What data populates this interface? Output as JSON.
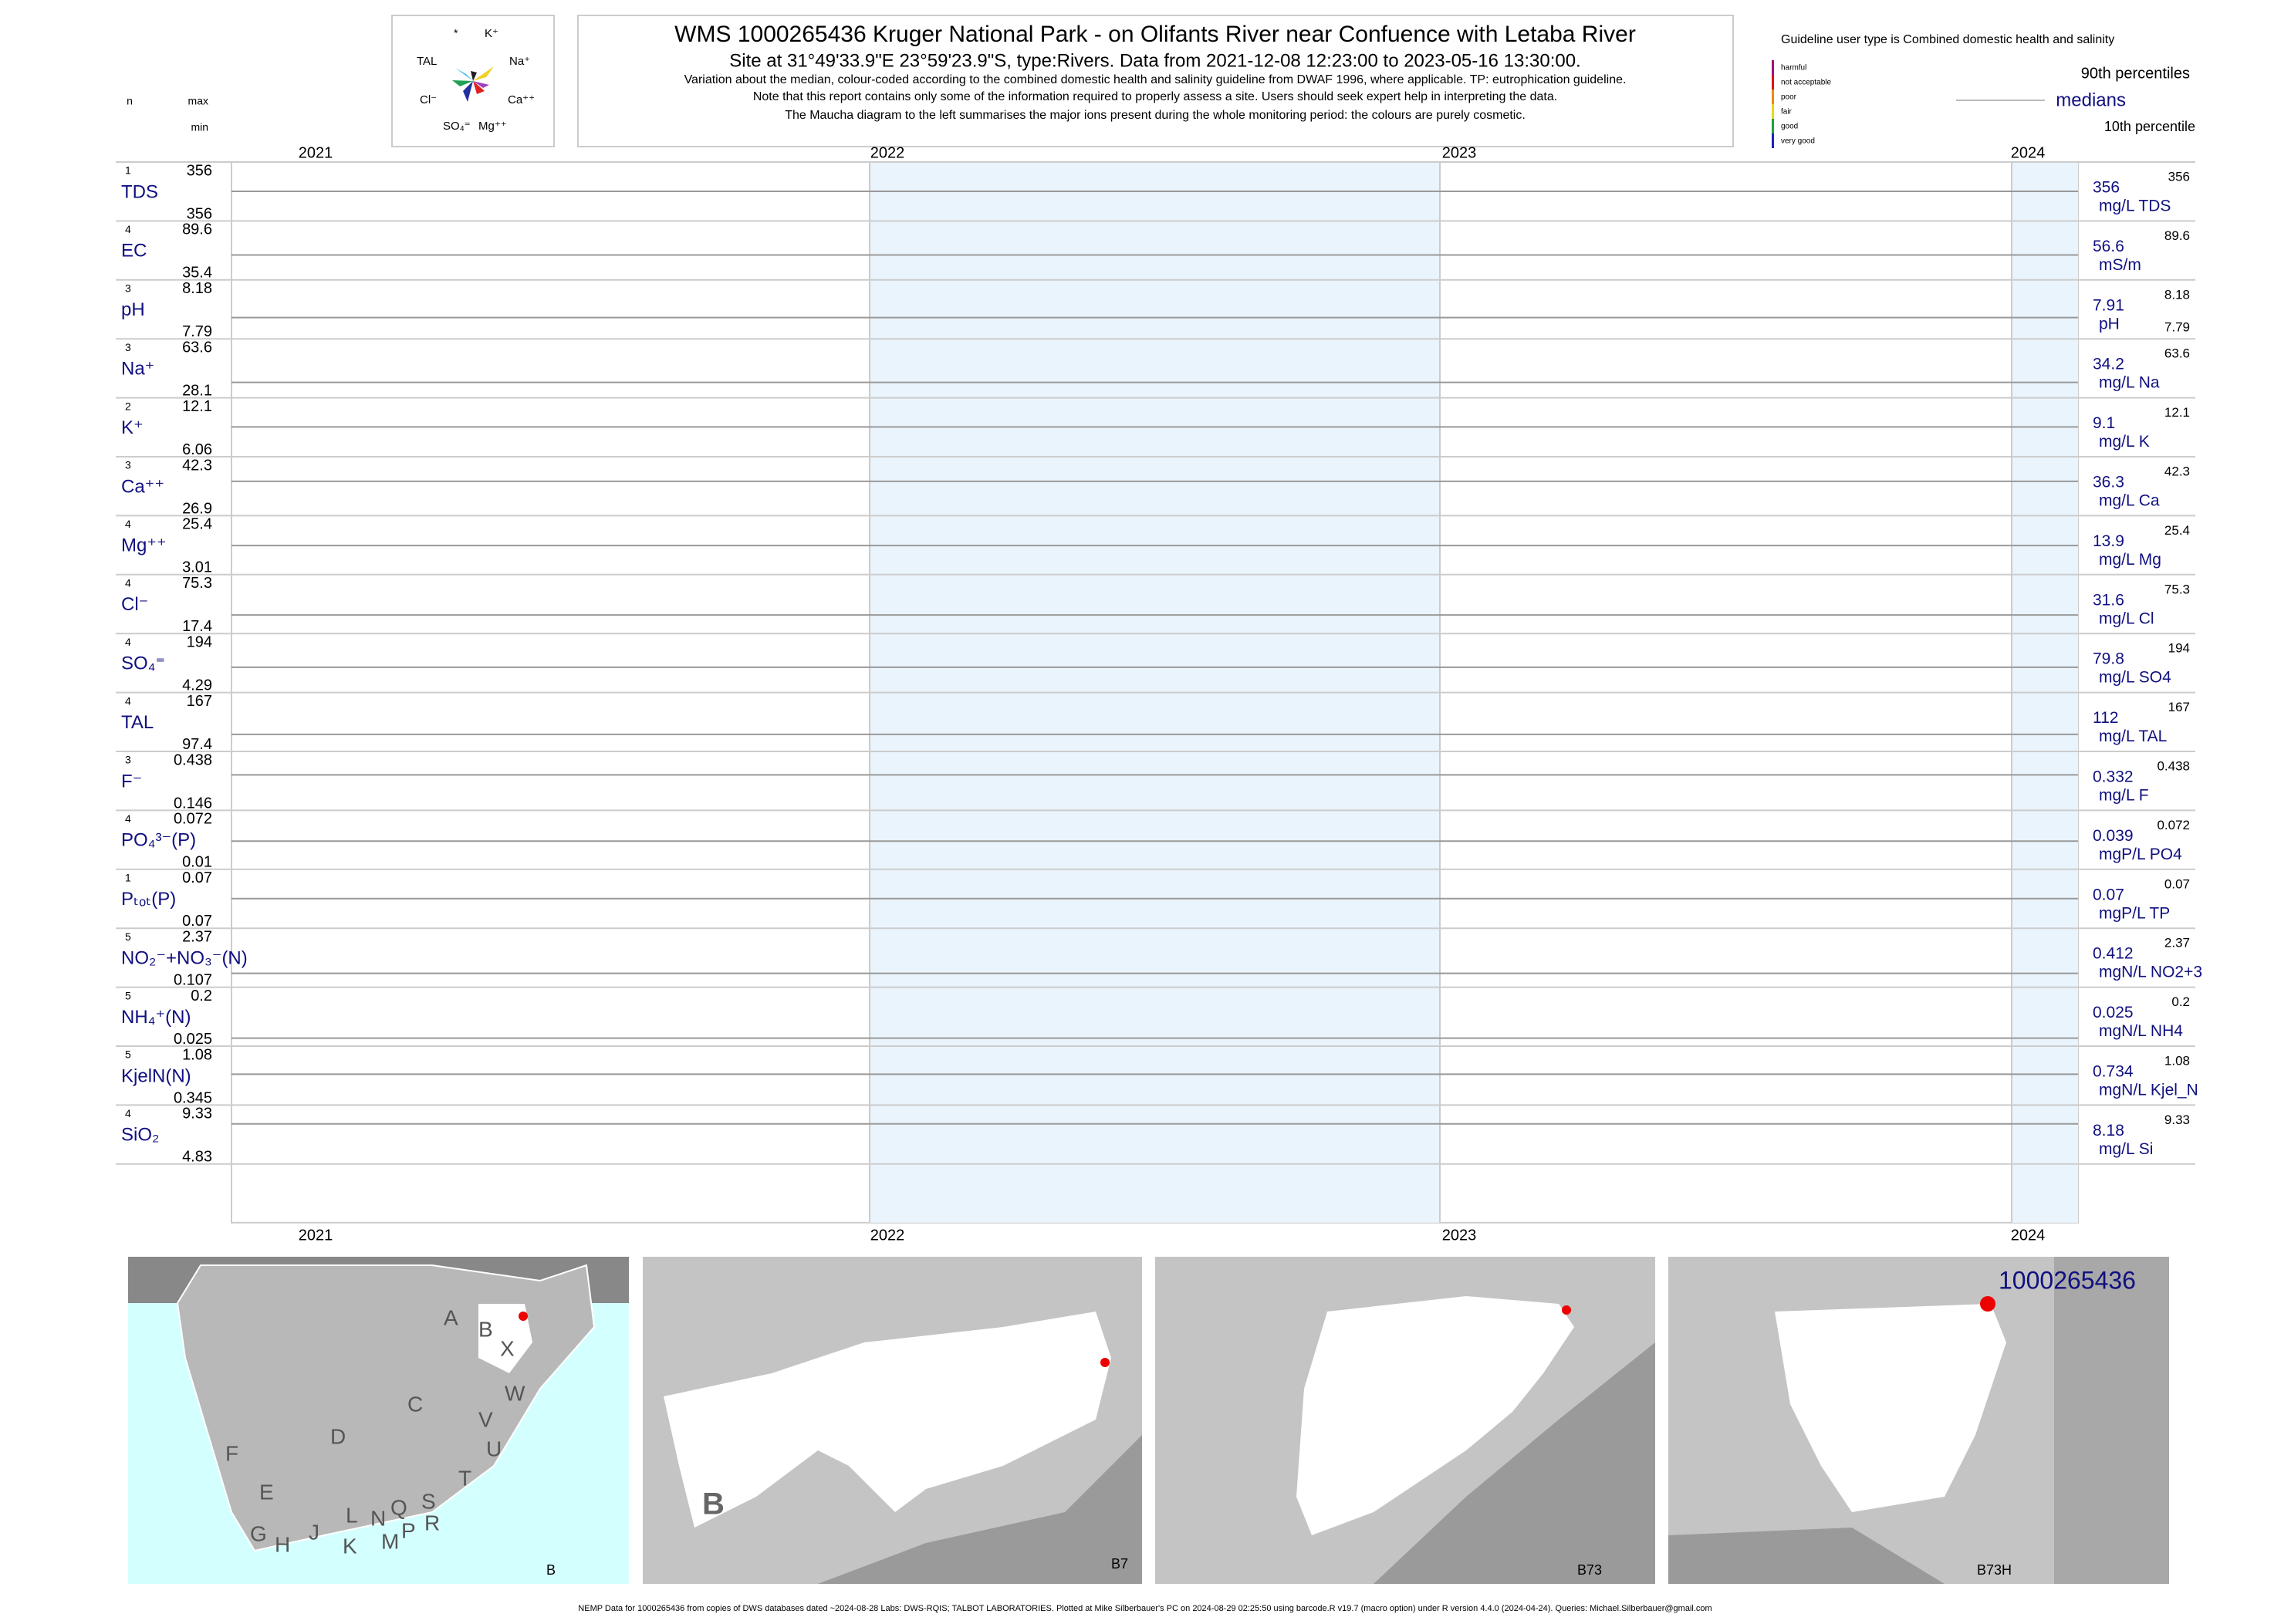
{
  "header": {
    "title": "WMS 1000265436  Kruger National Park - on Olifants River near Confuence with Letaba River",
    "site": "Site at 31°49'33.9\"E 23°59'23.9\"S, type:Rivers.  Data from 2021-12-08 12:23:00 to 2023-05-16 13:30:00.",
    "notes": [
      "Variation about the median,  colour-coded according to the combined domestic health and salinity guideline from DWAF 1996, where applicable. TP: eutrophication guideline.",
      "Note that this report contains only some of the information required to properly assess a site. Users should seek expert help in interpreting the data.",
      "The Maucha diagram to the left summarises the major ions present during the whole monitoring period: the colours are purely cosmetic."
    ]
  },
  "maucha": {
    "labels": [
      "*",
      "K⁺",
      "TAL",
      "Na⁺",
      "Cl⁻",
      "Ca⁺⁺",
      "SO₄⁼",
      "Mg⁺⁺"
    ]
  },
  "columns": {
    "n": "n",
    "max": "max",
    "min": "min"
  },
  "legend": {
    "title": "Guideline user type is Combined domestic health and salinity",
    "classes": [
      {
        "name": "harmful",
        "color": "#a0157a"
      },
      {
        "name": "not acceptable",
        "color": "#e0101a"
      },
      {
        "name": "poor",
        "color": "#f08a10"
      },
      {
        "name": "fair",
        "color": "#e8d81a"
      },
      {
        "name": "good",
        "color": "#20a040"
      },
      {
        "name": "very good",
        "color": "#2020c0"
      }
    ],
    "p90": "90th percentiles",
    "medians": "medians",
    "p10": "10th percentile"
  },
  "years": [
    "2021",
    "2022",
    "2023",
    "2024"
  ],
  "rows": [
    {
      "n": "1",
      "name": "TDS",
      "max": 356,
      "min": 356,
      "median": 356,
      "unit": "mg/L TDS",
      "p90": 356
    },
    {
      "n": "4",
      "name": "EC",
      "max": 89.6,
      "min": 35.4,
      "median": 56.6,
      "unit": "mS/m",
      "p90": 89.6
    },
    {
      "n": "3",
      "name": "pH",
      "max": 8.18,
      "min": 7.79,
      "median": 7.91,
      "unit": "pH",
      "p90": 8.18,
      "p10": 7.79
    },
    {
      "n": "3",
      "name": "Na⁺",
      "max": 63.6,
      "min": 28.1,
      "median": 34.2,
      "unit": "mg/L Na",
      "p90": 63.6
    },
    {
      "n": "2",
      "name": "K⁺",
      "max": 12.1,
      "min": 6.06,
      "median": 9.1,
      "unit": "mg/L K",
      "p90": 12.1
    },
    {
      "n": "3",
      "name": "Ca⁺⁺",
      "max": 42.3,
      "min": 26.9,
      "median": 36.3,
      "unit": "mg/L Ca",
      "p90": 42.3
    },
    {
      "n": "4",
      "name": "Mg⁺⁺",
      "max": 25.4,
      "min": 3.01,
      "median": 13.9,
      "unit": "mg/L Mg",
      "p90": 25.4
    },
    {
      "n": "4",
      "name": "Cl⁻",
      "max": 75.3,
      "min": 17.4,
      "median": 31.6,
      "unit": "mg/L Cl",
      "p90": 75.3
    },
    {
      "n": "4",
      "name": "SO₄⁼",
      "max": 194,
      "min": 4.29,
      "median": 79.8,
      "unit": "mg/L SO4",
      "p90": 194
    },
    {
      "n": "4",
      "name": "TAL",
      "max": 167,
      "min": 97.4,
      "median": 112,
      "unit": "mg/L TAL",
      "p90": 167
    },
    {
      "n": "3",
      "name": "F⁻",
      "max": 0.438,
      "min": 0.146,
      "median": 0.332,
      "unit": "mg/L F",
      "p90": 0.438
    },
    {
      "n": "4",
      "name": "PO₄³⁻(P)",
      "max": 0.072,
      "min": 0.01,
      "median": 0.039,
      "unit": "mgP/L PO4",
      "p90": 0.072
    },
    {
      "n": "1",
      "name": "Pₜₒₜ(P)",
      "max": 0.07,
      "min": 0.07,
      "median": 0.07,
      "unit": "mgP/L TP",
      "p90": 0.07
    },
    {
      "n": "5",
      "name": "NO₂⁻+NO₃⁻(N)",
      "max": 2.37,
      "min": 0.107,
      "median": 0.412,
      "unit": "mgN/L NO2+3",
      "p90": 2.37
    },
    {
      "n": "5",
      "name": "NH₄⁺(N)",
      "max": 0.2,
      "min": 0.025,
      "median": 0.025,
      "unit": "mgN/L NH4",
      "p90": 0.2
    },
    {
      "n": "5",
      "name": "KjelN(N)",
      "max": 1.08,
      "min": 0.345,
      "median": 0.734,
      "unit": "mgN/L Kjel_N",
      "p90": 1.08
    },
    {
      "n": "4",
      "name": "SiO₂",
      "max": 9.33,
      "min": 4.83,
      "median": 8.18,
      "unit": "mg/L Si",
      "p90": 9.33
    }
  ],
  "maps": {
    "map1": {
      "letters": [
        "A",
        "B",
        "X",
        "C",
        "W",
        "D",
        "V",
        "U",
        "F",
        "E",
        "T",
        "L",
        "N",
        "Q",
        "S",
        "R",
        "G",
        "H",
        "J",
        "K",
        "M",
        "P"
      ],
      "caption": "B"
    },
    "map2": {
      "big": "B",
      "caption": "B7"
    },
    "map3": {
      "caption": "B73"
    },
    "map4": {
      "site": "1000265436",
      "caption": "B73H"
    }
  },
  "footer": "NEMP Data for 1000265436 from copies of DWS databases dated ~2024-08-28 Labs: DWS-RQIS; TALBOT LABORATORIES. Plotted at Mike Silberbauer's PC on 2024-08-29 02:25:50 using barcode.R v19.7 (macro option) under R version 4.4.0 (2024-04-24). Queries: Michael.Silberbauer@gmail.com"
}
